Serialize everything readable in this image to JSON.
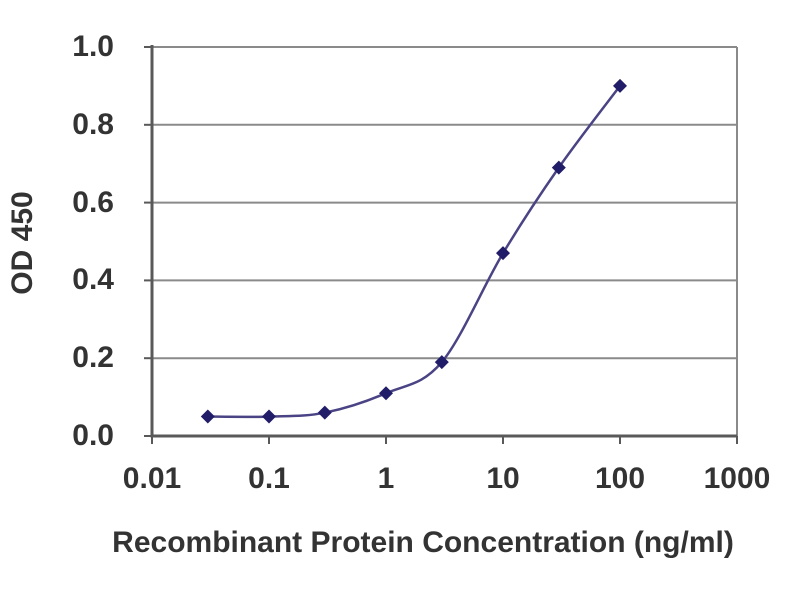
{
  "chart_data": {
    "type": "line",
    "title": "",
    "xlabel": "Recombinant Protein Concentration (ng/ml)",
    "ylabel": "OD 450",
    "x_scale": "log",
    "xlim": [
      0.01,
      1000
    ],
    "ylim": [
      0.0,
      1.0
    ],
    "x_tick_values": [
      0.01,
      0.1,
      1,
      10,
      100,
      1000
    ],
    "x_tick_labels": [
      "0.01",
      "0.1",
      "1",
      "10",
      "100",
      "1000"
    ],
    "y_tick_values": [
      1.0,
      0.8,
      0.6,
      0.4,
      0.2,
      0.0
    ],
    "y_tick_labels": [
      "1.0",
      "0.8",
      "0.6",
      "0.4",
      "0.2",
      "0.0"
    ],
    "grid": "horizontal",
    "legend": "none",
    "colors": {
      "background": "#ffffff",
      "grid": "#8a8a8a",
      "axis": "#595959",
      "text": "#333333"
    },
    "series": [
      {
        "name": "OD 450",
        "marker": "diamond",
        "line_color": "#4a4485",
        "marker_color": "#221d68",
        "x": [
          0.03,
          0.1,
          0.3,
          1,
          3,
          10,
          30,
          100
        ],
        "y": [
          0.05,
          0.05,
          0.06,
          0.11,
          0.19,
          0.47,
          0.69,
          0.9
        ]
      }
    ]
  }
}
